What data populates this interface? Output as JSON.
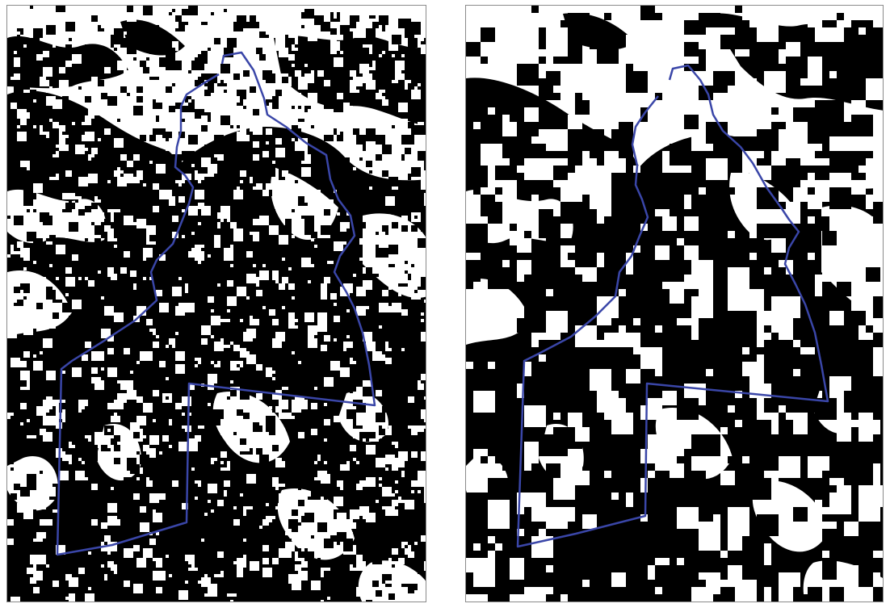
{
  "figure": {
    "panels": [
      {
        "id": "left",
        "ground_color": "#000000",
        "background_color": "#ffffff",
        "boundary_color": "#3a46a8"
      },
      {
        "id": "right",
        "ground_color": "#000000",
        "background_color": "#ffffff",
        "boundary_color": "#3a46a8"
      }
    ]
  }
}
